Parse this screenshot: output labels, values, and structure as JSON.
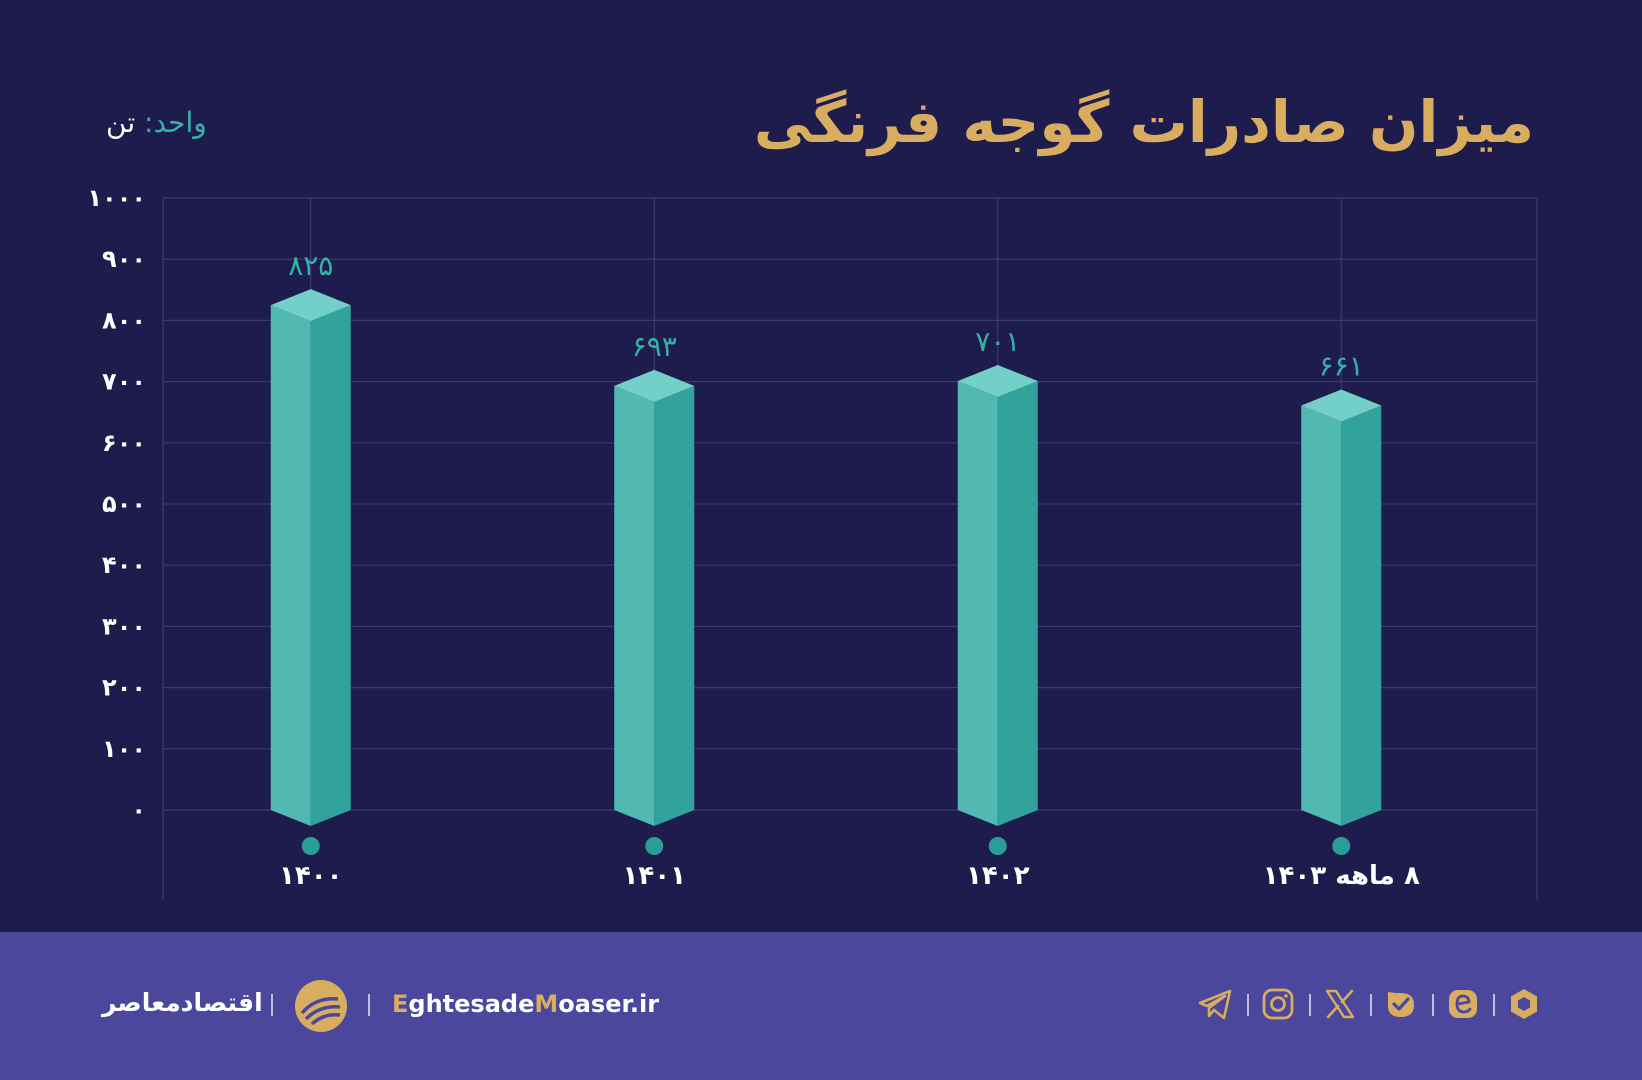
{
  "title": "میزان صادرات گوجه فرنگی",
  "unit": {
    "label": "واحد:",
    "value": "تن"
  },
  "chart_data": {
    "type": "bar",
    "categories": [
      "۱۴۰۰",
      "۱۴۰۱",
      "۱۴۰۲",
      "۸ ماهه ۱۴۰۳"
    ],
    "values": [
      825,
      693,
      701,
      661
    ],
    "value_labels": [
      "۸۲۵",
      "۶۹۳",
      "۷۰۱",
      "۶۶۱"
    ],
    "ylim": [
      0,
      1000
    ],
    "yticks": [
      0,
      100,
      200,
      300,
      400,
      500,
      600,
      700,
      800,
      900,
      1000
    ],
    "ytick_labels": [
      "۰",
      "۱۰۰",
      "۲۰۰",
      "۳۰۰",
      "۴۰۰",
      "۵۰۰",
      "۶۰۰",
      "۷۰۰",
      "۸۰۰",
      "۹۰۰",
      "۱۰۰۰"
    ],
    "grid": true,
    "colors": {
      "bar_light": "#52b9b2",
      "bar_dark": "#32a39c",
      "bar_top": "#73d0c8",
      "label": "#36b1a6",
      "grid": "#3b3a72"
    }
  },
  "footer": {
    "brand_name": "اقتصادمعاصر",
    "site_prefix": "E",
    "site_mid1": "ghtesade",
    "site_accent2": "M",
    "site_mid2": "oaser.ir",
    "social_icons": [
      "telegram-icon",
      "instagram-icon",
      "x-icon",
      "bale-icon",
      "eitaa-icon",
      "rubika-icon"
    ]
  }
}
